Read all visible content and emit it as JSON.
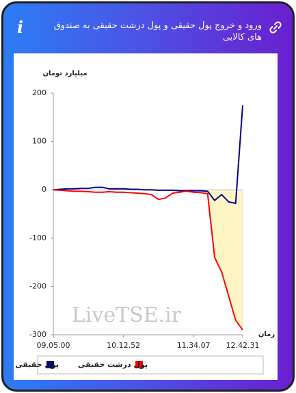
{
  "chart_data": {
    "type": "line",
    "title": "ورود و خروج پول حقیقی و پول درشت حقیقی به صندوق های کالایی",
    "y_label": "میلیارد تومان",
    "x_label": "زمان",
    "watermark": "LiveTSE.ir",
    "categories": [
      "09.05.00",
      null,
      null,
      null,
      null,
      null,
      null,
      null,
      null,
      null,
      "10.12.52",
      null,
      null,
      null,
      null,
      null,
      null,
      null,
      null,
      null,
      "11.34.07",
      null,
      null,
      null,
      null,
      null,
      null,
      "12.42.31"
    ],
    "series": [
      {
        "name": "پول حقیقی",
        "color": "#00008b",
        "values": [
          0,
          1,
          2,
          2,
          3,
          3,
          5,
          5,
          2,
          2,
          2,
          1,
          1,
          0,
          0,
          -1,
          -1,
          -1,
          -2,
          -2,
          -2,
          -2,
          -3,
          -22,
          -10,
          -25,
          -28,
          175
        ]
      },
      {
        "name": "پول درشت حقیقی",
        "color": "#ff0000",
        "values": [
          0,
          -1,
          -2,
          -3,
          -3,
          -4,
          -5,
          -5,
          -4,
          -5,
          -5,
          -6,
          -7,
          -8,
          -10,
          -20,
          -17,
          -7,
          -5,
          -3,
          -5,
          -6,
          -8,
          -140,
          -170,
          -220,
          -270,
          -290
        ]
      }
    ],
    "area_color": "#fdf5c4",
    "ylim": [
      -300,
      200
    ],
    "yticks": [
      -300,
      -200,
      -100,
      0,
      100,
      200
    ]
  }
}
